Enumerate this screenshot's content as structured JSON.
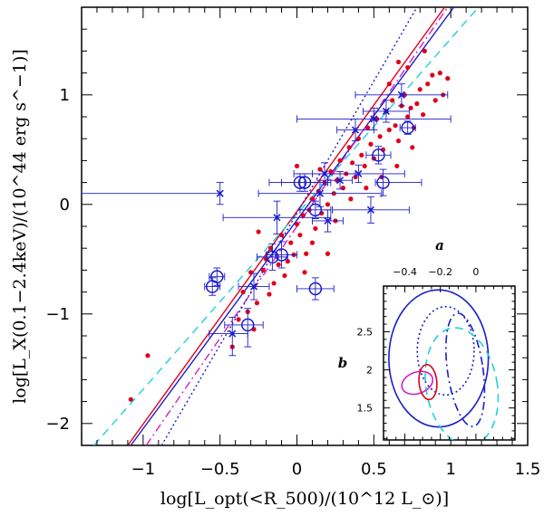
{
  "chart_data": {
    "type": "scatter",
    "xlabel": "log[L_opt(<R_500)/(10^12 L_⊙)]",
    "ylabel": "log[L_X(0.1−2.4keV)/(10^44 erg s^−1)]",
    "xlim": [
      -1.4,
      1.5
    ],
    "ylim": [
      -2.2,
      1.8
    ],
    "xticks": [
      -1,
      -0.5,
      0,
      0.5,
      1,
      1.5
    ],
    "xticklabels": [
      "−1",
      "−0.5",
      "0",
      "0.5",
      "1",
      "1.5"
    ],
    "yticks": [
      -2,
      -1,
      0,
      1
    ],
    "yticklabels": [
      "−2",
      "−1",
      "0",
      "1"
    ],
    "colors": {
      "red": "#e0001a",
      "blue": "#1c1ccc",
      "cyan": "#22d0d8",
      "magenta": "#d020c8"
    },
    "red_points": [
      [
        -1.08,
        -1.78
      ],
      [
        -0.97,
        -1.38
      ],
      [
        -0.42,
        -1.3
      ],
      [
        -0.38,
        -1.05
      ],
      [
        -0.32,
        -0.98
      ],
      [
        -0.28,
        -1.14
      ],
      [
        -0.26,
        -0.9
      ],
      [
        -0.22,
        -0.6
      ],
      [
        -0.2,
        -0.5
      ],
      [
        -0.17,
        -0.4
      ],
      [
        -0.15,
        -0.72
      ],
      [
        -0.12,
        -0.55
      ],
      [
        -0.1,
        -0.28
      ],
      [
        -0.08,
        -0.65
      ],
      [
        -0.06,
        -0.52
      ],
      [
        -0.04,
        -0.35
      ],
      [
        -0.02,
        -0.46
      ],
      [
        0.0,
        -0.18
      ],
      [
        0.02,
        -0.28
      ],
      [
        0.04,
        -0.1
      ],
      [
        0.06,
        -0.45
      ],
      [
        0.08,
        -0.05
      ],
      [
        0.1,
        0.05
      ],
      [
        0.12,
        -0.22
      ],
      [
        0.14,
        0.12
      ],
      [
        0.16,
        -0.08
      ],
      [
        0.18,
        0.2
      ],
      [
        0.2,
        0.0
      ],
      [
        0.22,
        0.3
      ],
      [
        0.24,
        0.1
      ],
      [
        0.26,
        0.22
      ],
      [
        0.28,
        0.4
      ],
      [
        0.3,
        0.15
      ],
      [
        0.32,
        0.28
      ],
      [
        0.34,
        0.52
      ],
      [
        0.36,
        0.38
      ],
      [
        0.38,
        0.25
      ],
      [
        0.4,
        0.6
      ],
      [
        0.42,
        0.45
      ],
      [
        0.44,
        0.35
      ],
      [
        0.46,
        0.7
      ],
      [
        0.48,
        0.55
      ],
      [
        0.5,
        0.42
      ],
      [
        0.52,
        0.78
      ],
      [
        0.54,
        0.62
      ],
      [
        0.56,
        0.5
      ],
      [
        0.58,
        0.85
      ],
      [
        0.6,
        0.68
      ],
      [
        0.62,
        0.95
      ],
      [
        0.64,
        0.72
      ],
      [
        0.66,
        0.58
      ],
      [
        0.68,
        0.9
      ],
      [
        0.7,
        1.0
      ],
      [
        0.72,
        0.8
      ],
      [
        0.74,
        0.88
      ],
      [
        0.76,
        0.7
      ],
      [
        0.78,
        0.92
      ],
      [
        0.8,
        1.05
      ],
      [
        0.82,
        0.82
      ],
      [
        0.85,
        1.1
      ],
      [
        0.88,
        1.18
      ],
      [
        0.9,
        0.95
      ],
      [
        0.93,
        1.2
      ],
      [
        0.95,
        1.0
      ],
      [
        0.98,
        1.15
      ],
      [
        -0.3,
        -0.62
      ],
      [
        -0.18,
        -0.82
      ],
      [
        0.05,
        -0.62
      ],
      [
        0.1,
        -0.35
      ],
      [
        0.15,
        0.32
      ],
      [
        0.25,
        -0.15
      ],
      [
        0.35,
        0.05
      ],
      [
        0.45,
        0.15
      ],
      [
        0.55,
        0.25
      ],
      [
        0.65,
        0.35
      ],
      [
        0.75,
        0.52
      ],
      [
        0.6,
        1.1
      ],
      [
        0.72,
        1.25
      ],
      [
        0.83,
        1.4
      ],
      [
        0.66,
        1.3
      ],
      [
        -0.25,
        -0.25
      ],
      [
        -0.35,
        -0.8
      ],
      [
        0.0,
        0.35
      ],
      [
        0.2,
        -0.45
      ]
    ],
    "circles": [
      {
        "x": -0.52,
        "y": -0.66,
        "xerr": [
          0.05,
          0.05
        ],
        "yerr": [
          0.08,
          0.08
        ]
      },
      {
        "x": -0.55,
        "y": -0.75,
        "xerr": [
          0.05,
          0.05
        ],
        "yerr": [
          0.08,
          0.08
        ]
      },
      {
        "x": -0.32,
        "y": -1.1,
        "xerr": [
          0.15,
          0.1
        ],
        "yerr": [
          0.2,
          0.15
        ]
      },
      {
        "x": -0.16,
        "y": -0.48,
        "xerr": [
          0.1,
          0.1
        ],
        "yerr": [
          0.12,
          0.12
        ]
      },
      {
        "x": -0.1,
        "y": -0.46,
        "xerr": [
          0.1,
          0.1
        ],
        "yerr": [
          0.12,
          0.12
        ]
      },
      {
        "x": 0.02,
        "y": 0.2,
        "xerr": [
          0.2,
          0.2
        ],
        "yerr": [
          0.08,
          0.08
        ]
      },
      {
        "x": 0.05,
        "y": 0.2,
        "xerr": [
          0.15,
          0.15
        ],
        "yerr": [
          0.08,
          0.08
        ]
      },
      {
        "x": 0.12,
        "y": -0.05,
        "xerr": [
          0.1,
          0.1
        ],
        "yerr": [
          0.08,
          0.08
        ]
      },
      {
        "x": 0.12,
        "y": -0.77,
        "xerr": [
          0.12,
          0.12
        ],
        "yerr": [
          0.1,
          0.1
        ]
      },
      {
        "x": 0.53,
        "y": 0.45,
        "xerr": [
          0.08,
          0.08
        ],
        "yerr": [
          0.08,
          0.08
        ]
      },
      {
        "x": 0.56,
        "y": 0.2,
        "xerr": [
          0.05,
          0.25
        ],
        "yerr": [
          0.12,
          0.12
        ]
      },
      {
        "x": 0.72,
        "y": 0.7,
        "xerr": [
          0.05,
          0.05
        ],
        "yerr": [
          0.06,
          0.06
        ]
      }
    ],
    "crosses": [
      {
        "x": -0.5,
        "y": 0.1,
        "xerr": [
          0.9,
          0.0
        ],
        "yerr": [
          0.1,
          0.1
        ]
      },
      {
        "x": -0.42,
        "y": -1.18,
        "xerr": [
          0.15,
          0.1
        ],
        "yerr": [
          0.2,
          0.15
        ]
      },
      {
        "x": -0.28,
        "y": -0.75,
        "xerr": [
          0.1,
          0.1
        ],
        "yerr": [
          0.12,
          0.12
        ]
      },
      {
        "x": -0.13,
        "y": -0.12,
        "xerr": [
          0.35,
          0.35
        ],
        "yerr": [
          0.15,
          0.15
        ]
      },
      {
        "x": 0.15,
        "y": 0.1,
        "xerr": [
          0.4,
          0.4
        ],
        "yerr": [
          0.12,
          0.12
        ]
      },
      {
        "x": 0.18,
        "y": 0.28,
        "xerr": [
          0.2,
          0.2
        ],
        "yerr": [
          0.1,
          0.1
        ]
      },
      {
        "x": 0.2,
        "y": -0.15,
        "xerr": [
          0.1,
          0.1
        ],
        "yerr": [
          0.1,
          0.1
        ]
      },
      {
        "x": 0.28,
        "y": 0.22,
        "xerr": [
          0.08,
          0.08
        ],
        "yerr": [
          0.08,
          0.08
        ]
      },
      {
        "x": 0.38,
        "y": 0.68,
        "xerr": [
          0.12,
          0.12
        ],
        "yerr": [
          0.1,
          0.1
        ]
      },
      {
        "x": 0.4,
        "y": 0.28,
        "xerr": [
          0.3,
          0.3
        ],
        "yerr": [
          0.08,
          0.08
        ]
      },
      {
        "x": 0.48,
        "y": -0.05,
        "xerr": [
          0.25,
          0.25
        ],
        "yerr": [
          0.12,
          0.12
        ]
      },
      {
        "x": 0.5,
        "y": 0.78,
        "xerr": [
          0.5,
          0.5
        ],
        "yerr": [
          0.1,
          0.1
        ]
      },
      {
        "x": 0.68,
        "y": 1.0,
        "xerr": [
          0.3,
          0.3
        ],
        "yerr": [
          0.1,
          0.1
        ]
      },
      {
        "x": 0.58,
        "y": 0.85,
        "xerr": [
          0.15,
          0.15
        ],
        "yerr": [
          0.1,
          0.1
        ]
      }
    ],
    "fit_lines": [
      {
        "name": "red",
        "color": "#e0001a",
        "style": "solid",
        "x1": -1.1,
        "y1": -2.2,
        "x2": 0.96,
        "y2": 1.8
      },
      {
        "name": "blue",
        "color": "#1c1ccc",
        "style": "solid",
        "x1": -1.08,
        "y1": -2.2,
        "x2": 1.02,
        "y2": 1.8
      },
      {
        "name": "cyan",
        "color": "#22d0d8",
        "style": "dashed",
        "x1": -1.32,
        "y1": -2.2,
        "x2": 1.18,
        "y2": 1.8
      },
      {
        "name": "magenta",
        "color": "#d020c8",
        "style": "dotdash",
        "x1": -0.98,
        "y1": -2.2,
        "x2": 0.98,
        "y2": 1.8
      },
      {
        "name": "blue-dotted",
        "color": "#1c1ccc",
        "style": "dotted",
        "x1": -0.88,
        "y1": -2.2,
        "x2": 0.78,
        "y2": 1.8
      }
    ],
    "inset": {
      "xlabel": "a",
      "ylabel": "b",
      "xlim": [
        -0.52,
        0.22
      ],
      "ylim": [
        1.08,
        3.1
      ],
      "xticks": [
        -0.4,
        -0.2,
        0
      ],
      "xticklabels": [
        "−0.4",
        "−0.2",
        "0"
      ],
      "yticks": [
        1.5,
        2,
        2.5
      ],
      "yticklabels": [
        "1.5",
        "2",
        "2.5"
      ],
      "ellipses": [
        {
          "color": "#1c1ccc",
          "style": "solid",
          "cx": -0.21,
          "cy": 2.15,
          "rx": 0.28,
          "ry": 0.9,
          "angle": 0
        },
        {
          "color": "#1c1ccc",
          "style": "dotted",
          "cx": -0.17,
          "cy": 2.25,
          "rx": 0.16,
          "ry": 0.58,
          "angle": 0
        },
        {
          "color": "#1c1ccc",
          "style": "dashdot",
          "cx": -0.06,
          "cy": 2.0,
          "rx": 0.1,
          "ry": 0.75,
          "angle": -8
        },
        {
          "color": "#22d0d8",
          "style": "dashed",
          "cx": -0.08,
          "cy": 1.78,
          "rx": 0.2,
          "ry": 0.78,
          "angle": -10
        },
        {
          "color": "#d020c8",
          "style": "solid",
          "cx": -0.33,
          "cy": 1.83,
          "rx": 0.09,
          "ry": 0.14,
          "angle": -20
        },
        {
          "color": "#e0001a",
          "style": "solid",
          "cx": -0.27,
          "cy": 1.84,
          "rx": 0.05,
          "ry": 0.23,
          "angle": -5
        }
      ]
    }
  }
}
